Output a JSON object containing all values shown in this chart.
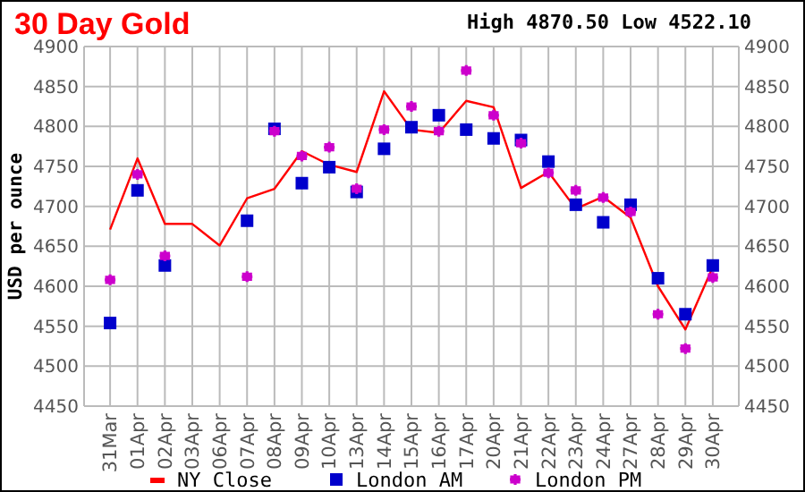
{
  "chart_data": {
    "type": "line",
    "title": "30 Day Gold",
    "subtitle": "High 4870.50 Low 4522.10",
    "ylabel": "USD per ounce",
    "categories": [
      "31Mar",
      "01Apr",
      "02Apr",
      "03Apr",
      "06Apr",
      "07Apr",
      "08Apr",
      "09Apr",
      "10Apr",
      "13Apr",
      "14Apr",
      "15Apr",
      "16Apr",
      "17Apr",
      "20Apr",
      "21Apr",
      "22Apr",
      "23Apr",
      "24Apr",
      "27Apr",
      "28Apr",
      "29Apr",
      "30Apr"
    ],
    "series": [
      {
        "name": "NY Close",
        "type": "line",
        "color": "#ff0000",
        "marker": "none",
        "values": [
          4671,
          4760,
          4678,
          4678,
          4651,
          4710,
          4722,
          4769,
          4752,
          4743,
          4844,
          4796,
          4792,
          4832,
          4824,
          4723,
          4743,
          4697,
          4712,
          4686,
          4600,
          4546,
          4624
        ]
      },
      {
        "name": "London AM",
        "type": "scatter",
        "color": "#0000cc",
        "marker": "square",
        "values": [
          4554,
          4720,
          4626,
          null,
          null,
          4682,
          4797,
          4729,
          4749,
          4718,
          4772,
          4799,
          4814,
          4796,
          4785,
          4783,
          4756,
          4702,
          4680,
          4702,
          4610,
          4565,
          4626
        ]
      },
      {
        "name": "London PM",
        "type": "scatter",
        "color": "#cc00cc",
        "marker": "cross",
        "values": [
          4608,
          4740,
          4638,
          null,
          null,
          4612,
          4794,
          4763,
          4774,
          4722,
          4796,
          4825,
          4794,
          4870,
          4814,
          4779,
          4742,
          4720,
          4711,
          4693,
          4565,
          4522,
          4611
        ]
      }
    ],
    "ylim": [
      4450,
      4900
    ],
    "yticks": [
      4450,
      4500,
      4550,
      4600,
      4650,
      4700,
      4750,
      4800,
      4850,
      4900
    ],
    "y2lim": [
      4450,
      4900
    ],
    "y2ticks": [
      4450,
      4500,
      4550,
      4600,
      4650,
      4700,
      4750,
      4800,
      4850,
      4900
    ],
    "grid": true,
    "legend": "bottom"
  }
}
